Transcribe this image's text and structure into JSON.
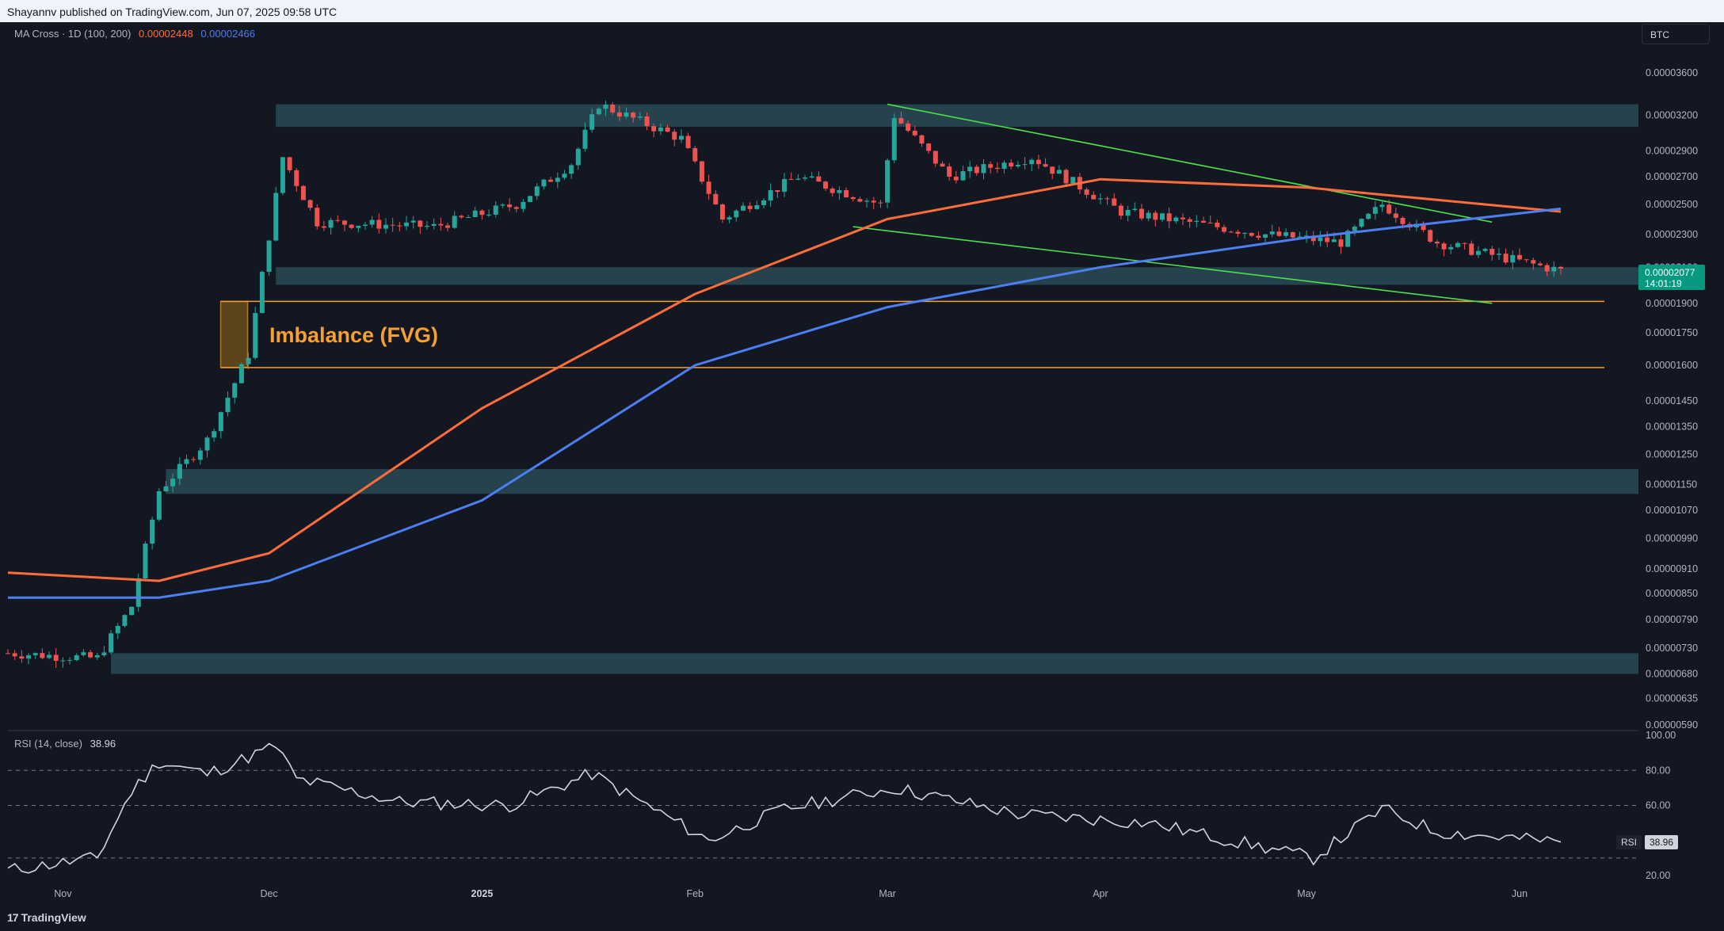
{
  "header": {
    "published": "Shayannv published on TradingView.com, Jun 07, 2025 09:58 UTC"
  },
  "symbol": "BTC",
  "indicator": {
    "name": "MA Cross · 1D (100, 200)",
    "ma100_value": "0.00002448",
    "ma200_value": "0.00002466",
    "ma100_color": "#ff6d3a",
    "ma200_color": "#4d7ef2"
  },
  "rsi": {
    "name": "RSI (14, close)",
    "value": "38.96",
    "tag": "RSI",
    "levels": [
      80,
      60,
      30
    ]
  },
  "last_price": {
    "value": "0.00002077",
    "countdown": "14:01:19"
  },
  "annotation": {
    "fvg_label": "Imbalance (FVG)"
  },
  "footer": {
    "brand": "TradingView"
  },
  "colors": {
    "up": "#26a69a",
    "down": "#ef5350",
    "zone": "#2a4a55",
    "trend": "#4ce04c",
    "fvg": "#f5a033",
    "rsi_line": "#d1d4dc"
  },
  "chart_data": {
    "type": "candlestick",
    "timeframe": "1D",
    "date_range": [
      "2024-10-24",
      "2025-06-07"
    ],
    "x_tick_labels": [
      "Nov",
      "Dec",
      "2025",
      "Feb",
      "Mar",
      "Apr",
      "May",
      "Jun"
    ],
    "y_tick_labels": [
      "0.00003600",
      "0.00003200",
      "0.00002900",
      "0.00002700",
      "0.00002500",
      "0.00002300",
      "0.00002100",
      "0.00001900",
      "0.00001750",
      "0.00001600",
      "0.00001450",
      "0.00001350",
      "0.00001250",
      "0.00001150",
      "0.00001070",
      "0.00000990",
      "0.00000910",
      "0.00000850",
      "0.00000790",
      "0.00000730",
      "0.00000680",
      "0.00000635",
      "0.00000590"
    ],
    "rsi_tick_labels": [
      "100.00",
      "80.00",
      "60.00",
      "20.00"
    ],
    "price_path": [
      [
        "2024-10-24",
        7.2e-06
      ],
      [
        "2024-11-06",
        7.1e-06
      ],
      [
        "2024-11-11",
        8.2e-06
      ],
      [
        "2024-11-15",
        1.13e-05
      ],
      [
        "2024-11-22",
        1.3e-05
      ],
      [
        "2024-11-28",
        1.65e-05
      ],
      [
        "2024-12-03",
        2.85e-05
      ],
      [
        "2024-12-08",
        2.38e-05
      ],
      [
        "2024-12-25",
        2.35e-05
      ],
      [
        "2025-01-06",
        2.5e-05
      ],
      [
        "2025-01-14",
        2.8e-05
      ],
      [
        "2025-01-18",
        3.3e-05
      ],
      [
        "2025-01-30",
        3e-05
      ],
      [
        "2025-02-05",
        2.4e-05
      ],
      [
        "2025-02-16",
        2.7e-05
      ],
      [
        "2025-02-28",
        2.5e-05
      ],
      [
        "2025-03-02",
        3.2e-05
      ],
      [
        "2025-03-10",
        2.7e-05
      ],
      [
        "2025-03-22",
        2.85e-05
      ],
      [
        "2025-04-04",
        2.45e-05
      ],
      [
        "2025-04-25",
        2.3e-05
      ],
      [
        "2025-05-06",
        2.25e-05
      ],
      [
        "2025-05-12",
        2.5e-05
      ],
      [
        "2025-05-20",
        2.25e-05
      ],
      [
        "2025-06-07",
        2.08e-05
      ]
    ],
    "ma100_path": [
      [
        "2024-10-24",
        9e-06
      ],
      [
        "2024-11-15",
        8.8e-06
      ],
      [
        "2024-12-01",
        9.5e-06
      ],
      [
        "2025-01-01",
        1.42e-05
      ],
      [
        "2025-02-01",
        1.95e-05
      ],
      [
        "2025-03-01",
        2.4e-05
      ],
      [
        "2025-04-01",
        2.68e-05
      ],
      [
        "2025-05-01",
        2.62e-05
      ],
      [
        "2025-06-07",
        2.45e-05
      ]
    ],
    "ma200_path": [
      [
        "2024-10-24",
        8.4e-06
      ],
      [
        "2024-11-15",
        8.4e-06
      ],
      [
        "2024-12-01",
        8.8e-06
      ],
      [
        "2025-01-01",
        1.1e-05
      ],
      [
        "2025-02-01",
        1.6e-05
      ],
      [
        "2025-03-01",
        1.88e-05
      ],
      [
        "2025-04-01",
        2.1e-05
      ],
      [
        "2025-05-01",
        2.28e-05
      ],
      [
        "2025-06-07",
        2.47e-05
      ]
    ],
    "rsi_path": [
      [
        "2024-10-24",
        23
      ],
      [
        "2024-11-06",
        30
      ],
      [
        "2024-11-11",
        68
      ],
      [
        "2024-11-15",
        85
      ],
      [
        "2024-11-22",
        78
      ],
      [
        "2024-12-02",
        94
      ],
      [
        "2024-12-05",
        75
      ],
      [
        "2024-12-20",
        62
      ],
      [
        "2025-01-05",
        60
      ],
      [
        "2025-01-17",
        78
      ],
      [
        "2025-02-03",
        40
      ],
      [
        "2025-02-14",
        58
      ],
      [
        "2025-03-02",
        70
      ],
      [
        "2025-03-20",
        55
      ],
      [
        "2025-04-08",
        50
      ],
      [
        "2025-05-02",
        30
      ],
      [
        "2025-05-12",
        58
      ],
      [
        "2025-05-20",
        45
      ],
      [
        "2025-06-07",
        39
      ]
    ],
    "zones": [
      {
        "from": "2024-12-02",
        "to": "2025-06-07",
        "low": 3.1e-05,
        "high": 3.3e-05
      },
      {
        "from": "2024-12-02",
        "to": "2025-06-07",
        "low": 2e-05,
        "high": 2.1e-05
      },
      {
        "from": "2024-11-16",
        "to": "2025-06-07",
        "low": 1.12e-05,
        "high": 1.2e-05
      },
      {
        "from": "2024-11-08",
        "to": "2025-06-07",
        "low": 6.8e-06,
        "high": 7.2e-06
      }
    ],
    "fvg": {
      "from": "2024-11-28",
      "to": "2025-06-04",
      "low": 1.59e-05,
      "high": 1.91e-05
    },
    "trendlines": [
      {
        "start": [
          "2025-03-01",
          3.3e-05
        ],
        "end": [
          "2025-05-28",
          2.38e-05
        ]
      },
      {
        "start": [
          "2025-02-24",
          2.35e-05
        ],
        "end": [
          "2025-05-28",
          1.9e-05
        ]
      }
    ]
  }
}
